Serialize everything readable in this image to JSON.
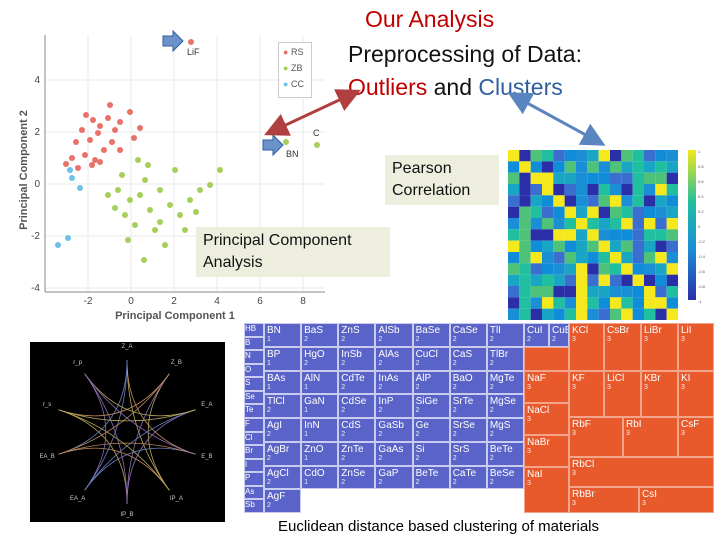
{
  "slide": {
    "title": "Our Analysis",
    "subtitle_prefix": "Preprocessing of Data:",
    "outliers_word": "Outliers",
    "and_word": "and",
    "clusters_word": "Clusters",
    "pearson_label_line1": "Pearson",
    "pearson_label_line2": "Correlation",
    "pca_label_line1": "Principal Component",
    "pca_label_line2": "Analysis",
    "caption": "Euclidean distance based clustering of materials",
    "colors": {
      "accent_red": "#c00000",
      "accent_blue": "#2e5f9e",
      "callout_bg": "#eeeede"
    }
  },
  "pca_plot": {
    "xlabel": "Principal Component 1",
    "ylabel": "Principal Component 2",
    "x_ticks": [
      "-2",
      "0",
      "2",
      "4",
      "6",
      "8"
    ],
    "y_ticks": [
      "4",
      "2",
      "0",
      "-2",
      "-4"
    ],
    "legend": [
      {
        "label": "RS",
        "color": "#e8726b"
      },
      {
        "label": "ZB",
        "color": "#a6cf5a"
      },
      {
        "label": "CC",
        "color": "#6fc0e8"
      }
    ],
    "annotations": {
      "lif": "LiF",
      "bn": "BN",
      "c": "C"
    }
  },
  "heatmap": {
    "colorbar_ticks": [
      "1",
      "0.8",
      "0.6",
      "0.4",
      "0.2",
      "0",
      "-0.2",
      "-0.4",
      "-0.6",
      "-0.8",
      "-1"
    ]
  },
  "treemap": {
    "sidebar": [
      "HB",
      "B",
      "N",
      "O",
      "S",
      "Se",
      "Te",
      "F",
      "Cl",
      "Br",
      "I",
      "P",
      "As",
      "Sb"
    ],
    "cells": [
      {
        "label": "BN",
        "num": "1",
        "cls": "blue"
      },
      {
        "label": "BaS",
        "num": "2",
        "cls": "blue"
      },
      {
        "label": "ZnS",
        "num": "2",
        "cls": "blue"
      },
      {
        "label": "AlSb",
        "num": "2",
        "cls": "blue"
      },
      {
        "label": "BaSe",
        "num": "2",
        "cls": "blue"
      },
      {
        "label": "CaSe",
        "num": "2",
        "cls": "blue"
      },
      {
        "label": "TlI",
        "num": "2",
        "cls": "blue"
      },
      {
        "label": "BP",
        "num": "1",
        "cls": "blue"
      },
      {
        "label": "HgO",
        "num": "2",
        "cls": "blue"
      },
      {
        "label": "InSb",
        "num": "2",
        "cls": "blue"
      },
      {
        "label": "AlAs",
        "num": "2",
        "cls": "blue"
      },
      {
        "label": "CuCl",
        "num": "2",
        "cls": "blue"
      },
      {
        "label": "CaS",
        "num": "2",
        "cls": "blue"
      },
      {
        "label": "TlBr",
        "num": "2",
        "cls": "blue"
      },
      {
        "label": "BAs",
        "num": "1",
        "cls": "blue"
      },
      {
        "label": "AlN",
        "num": "1",
        "cls": "blue"
      },
      {
        "label": "CdTe",
        "num": "2",
        "cls": "blue"
      },
      {
        "label": "InAs",
        "num": "2",
        "cls": "blue"
      },
      {
        "label": "AlP",
        "num": "2",
        "cls": "blue"
      },
      {
        "label": "BaO",
        "num": "2",
        "cls": "blue"
      },
      {
        "label": "MgTe",
        "num": "2",
        "cls": "blue"
      },
      {
        "label": "TlCl",
        "num": "2",
        "cls": "blue"
      },
      {
        "label": "GaN",
        "num": "1",
        "cls": "blue"
      },
      {
        "label": "CdSe",
        "num": "2",
        "cls": "blue"
      },
      {
        "label": "InP",
        "num": "2",
        "cls": "blue"
      },
      {
        "label": "SiGe",
        "num": "2",
        "cls": "blue"
      },
      {
        "label": "SrTe",
        "num": "2",
        "cls": "blue"
      },
      {
        "label": "MgSe",
        "num": "2",
        "cls": "blue"
      },
      {
        "label": "AgI",
        "num": "2",
        "cls": "blue"
      },
      {
        "label": "InN",
        "num": "1",
        "cls": "blue"
      },
      {
        "label": "CdS",
        "num": "2",
        "cls": "blue"
      },
      {
        "label": "GaSb",
        "num": "2",
        "cls": "blue"
      },
      {
        "label": "Ge",
        "num": "2",
        "cls": "blue"
      },
      {
        "label": "SrSe",
        "num": "2",
        "cls": "blue"
      },
      {
        "label": "MgS",
        "num": "2",
        "cls": "blue"
      },
      {
        "label": "AgBr",
        "num": "2",
        "cls": "blue"
      },
      {
        "label": "ZnO",
        "num": "1",
        "cls": "blue"
      },
      {
        "label": "ZnTe",
        "num": "2",
        "cls": "blue"
      },
      {
        "label": "GaAs",
        "num": "2",
        "cls": "blue"
      },
      {
        "label": "Si",
        "num": "2",
        "cls": "blue"
      },
      {
        "label": "SrS",
        "num": "2",
        "cls": "blue"
      },
      {
        "label": "BeTe",
        "num": "2",
        "cls": "blue"
      },
      {
        "label": "AgCl",
        "num": "2",
        "cls": "blue"
      },
      {
        "label": "CdO",
        "num": "1",
        "cls": "blue"
      },
      {
        "label": "ZnSe",
        "num": "2",
        "cls": "blue"
      },
      {
        "label": "GaP",
        "num": "2",
        "cls": "blue"
      },
      {
        "label": "BeTe",
        "num": "2",
        "cls": "blue"
      },
      {
        "label": "CaTe",
        "num": "2",
        "cls": "blue"
      },
      {
        "label": "BeSe",
        "num": "2",
        "cls": "blue"
      },
      {
        "label": "AgF",
        "num": "2",
        "cls": "blue"
      },
      {
        "label": "CuI",
        "num": "2",
        "cls": "blue"
      },
      {
        "label": "CuBr",
        "num": "2",
        "cls": "blue"
      },
      {
        "label": "KCl",
        "num": "3",
        "cls": "orange"
      },
      {
        "label": "CsBr",
        "num": "3",
        "cls": "orange"
      },
      {
        "label": "LiBr",
        "num": "3",
        "cls": "orange"
      },
      {
        "label": "LiI",
        "num": "3",
        "cls": "orange"
      },
      {
        "label": "NaF",
        "num": "3",
        "cls": "orange"
      },
      {
        "label": "KF",
        "num": "3",
        "cls": "orange"
      },
      {
        "label": "LiCl",
        "num": "3",
        "cls": "orange"
      },
      {
        "label": "KBr",
        "num": "3",
        "cls": "orange"
      },
      {
        "label": "KI",
        "num": "3",
        "cls": "orange"
      },
      {
        "label": "NaCl",
        "num": "3",
        "cls": "orange"
      },
      {
        "label": "RbF",
        "num": "3",
        "cls": "orange"
      },
      {
        "label": "RbI",
        "num": "3",
        "cls": "orange"
      },
      {
        "label": "CsF",
        "num": "3",
        "cls": "orange"
      },
      {
        "label": "NaBr",
        "num": "3",
        "cls": "orange"
      },
      {
        "label": "RbCl",
        "num": "3",
        "cls": "orange"
      },
      {
        "label": "NaI",
        "num": "3",
        "cls": "orange"
      },
      {
        "label": "RbBr",
        "num": "3",
        "cls": "orange"
      },
      {
        "label": "CsI",
        "num": "3",
        "cls": "orange"
      }
    ]
  },
  "chord": {
    "labels": [
      "Z_A",
      "Z_B",
      "E_A",
      "E_B",
      "IP_A",
      "IP_B",
      "EA_A",
      "EA_B",
      "r_s",
      "r_p"
    ]
  }
}
